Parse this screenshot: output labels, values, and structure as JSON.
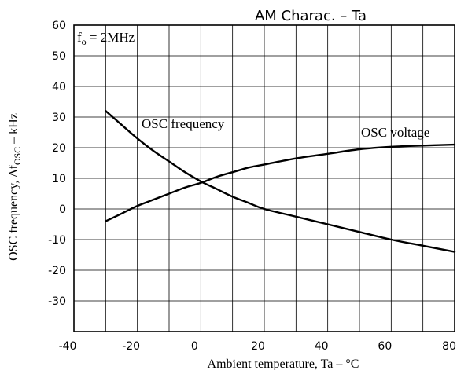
{
  "chart_data": {
    "type": "line",
    "title": "AM Charac.  –  Ta",
    "xlabel": "Ambient temperature, Ta  –  °C",
    "ylabel": "OSC frequency, Δf",
    "ylabel_sub": "OSC",
    "ylabel_unit": "  –  kHz",
    "xlim": [
      -40,
      80
    ],
    "ylim": [
      -40,
      60
    ],
    "x_ticks": [
      -40,
      -20,
      0,
      20,
      40,
      60,
      80
    ],
    "y_ticks": [
      60,
      50,
      40,
      30,
      20,
      10,
      0,
      -10,
      -20,
      -30
    ],
    "x_tick_labels": [
      "-40",
      "-20",
      "0",
      "20",
      "40",
      "60",
      "80"
    ],
    "y_tick_labels": [
      "60",
      "50",
      "40",
      "30",
      "20",
      "10",
      "0",
      "-10",
      "-20",
      "-30"
    ],
    "grid": true,
    "annotation": {
      "f": "f",
      "sub": "o",
      "rest": " = 2MHz"
    },
    "series": [
      {
        "name": "OSC frequency",
        "x": [
          -30,
          -25,
          -20,
          -15,
          -10,
          -5,
          0,
          5,
          10,
          15,
          20,
          30,
          40,
          50,
          60,
          70,
          80
        ],
        "y": [
          32,
          27.5,
          23,
          19,
          15.5,
          12,
          9,
          6.5,
          4,
          2,
          0,
          -2.5,
          -5,
          -7.5,
          -10,
          -12,
          -14
        ]
      },
      {
        "name": "OSC voltage",
        "x": [
          -30,
          -25,
          -20,
          -15,
          -10,
          -5,
          0,
          5,
          10,
          15,
          20,
          30,
          40,
          50,
          60,
          70,
          80
        ],
        "y": [
          -4,
          -1.5,
          1,
          3,
          5,
          7,
          8.5,
          10.5,
          12,
          13.5,
          14.5,
          16.5,
          18,
          19.5,
          20.3,
          20.7,
          21
        ]
      }
    ]
  }
}
